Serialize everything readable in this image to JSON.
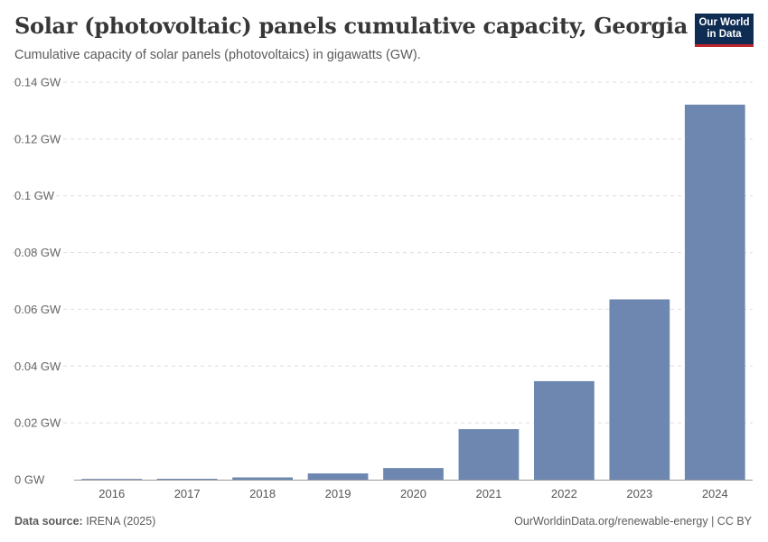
{
  "header": {
    "title": "Solar (photovoltaic) panels cumulative capacity, Georgia",
    "subtitle": "Cumulative capacity of solar panels (photovoltaics) in gigawatts (GW).",
    "logo_line1": "Our World",
    "logo_line2": "in Data"
  },
  "footer": {
    "source_label": "Data source:",
    "source_value": "IRENA (2025)",
    "url_license": "OurWorldinData.org/renewable-energy | CC BY"
  },
  "colors": {
    "bar": "#6d87b0",
    "grid": "#dddddd",
    "axis_text": "#666666"
  },
  "chart_data": {
    "type": "bar",
    "title": "Solar (photovoltaic) panels cumulative capacity, Georgia",
    "xlabel": "",
    "ylabel": "",
    "unit": "GW",
    "ylim": [
      0,
      0.14
    ],
    "yticks": [
      0,
      0.02,
      0.04,
      0.06,
      0.08,
      0.1,
      0.12,
      0.14
    ],
    "ytick_labels": [
      "0 GW",
      "0.02 GW",
      "0.04 GW",
      "0.06 GW",
      "0.08 GW",
      "0.1 GW",
      "0.12 GW",
      "0.14 GW"
    ],
    "categories": [
      "2016",
      "2017",
      "2018",
      "2019",
      "2020",
      "2021",
      "2022",
      "2023",
      "2024"
    ],
    "values": [
      0.0001,
      0.0003,
      0.0008,
      0.0022,
      0.0041,
      0.0178,
      0.0347,
      0.0635,
      0.1321
    ],
    "grid": true
  }
}
